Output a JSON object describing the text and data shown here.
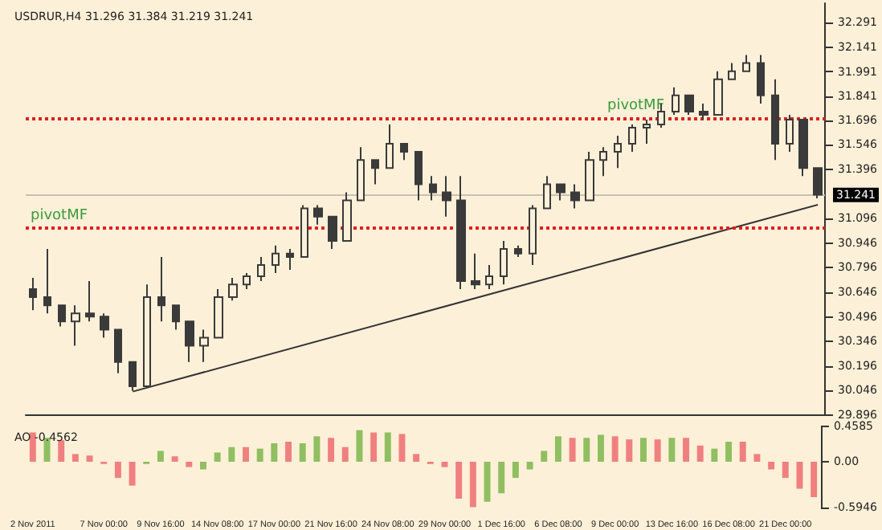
{
  "chart_data": [
    {
      "type": "candlestick",
      "title": "USDRUR,H4 31.296 31.384 31.219 31.241",
      "color": "#3a3a3a",
      "tick_labels": "y",
      "grid": false,
      "categories": [
        null,
        null,
        null,
        null,
        null,
        null,
        null,
        null,
        null,
        null,
        null,
        null,
        null,
        null,
        null,
        null,
        null,
        null,
        null,
        null,
        null,
        null,
        null,
        null,
        null,
        null,
        null,
        null,
        null,
        null,
        null,
        null,
        null,
        null,
        null,
        null,
        null,
        null,
        null,
        null,
        null,
        null,
        null,
        null,
        null,
        null,
        null,
        null,
        null,
        null,
        null,
        null,
        null,
        null,
        null,
        null
      ],
      "ohlc": [
        [
          30.665,
          30.734,
          30.537,
          30.616
        ],
        [
          30.616,
          30.911,
          30.517,
          30.566
        ],
        [
          30.566,
          30.566,
          30.438,
          30.468
        ],
        [
          30.468,
          30.566,
          30.32,
          30.517
        ],
        [
          30.517,
          30.714,
          30.468,
          30.497
        ],
        [
          30.497,
          30.517,
          30.369,
          30.418
        ],
        [
          30.418,
          30.418,
          30.152,
          30.221
        ],
        [
          30.221,
          30.221,
          30.044,
          30.073
        ],
        [
          30.073,
          30.694,
          30.073,
          30.616
        ],
        [
          30.616,
          30.862,
          30.468,
          30.566
        ],
        [
          30.566,
          30.566,
          30.418,
          30.468
        ],
        [
          30.468,
          30.468,
          30.221,
          30.32
        ],
        [
          30.32,
          30.418,
          30.221,
          30.369
        ],
        [
          30.369,
          30.665,
          30.369,
          30.616
        ],
        [
          30.616,
          30.734,
          30.596,
          30.694
        ],
        [
          30.694,
          30.763,
          30.665,
          30.744
        ],
        [
          30.744,
          30.862,
          30.714,
          30.813
        ],
        [
          30.813,
          30.931,
          30.763,
          30.882
        ],
        [
          30.882,
          30.911,
          30.783,
          30.862
        ],
        [
          30.862,
          31.177,
          30.862,
          31.158
        ],
        [
          31.158,
          31.177,
          31.059,
          31.108
        ],
        [
          31.108,
          31.108,
          30.911,
          30.96
        ],
        [
          30.96,
          31.256,
          30.96,
          31.207
        ],
        [
          31.207,
          31.532,
          31.207,
          31.453
        ],
        [
          31.453,
          31.453,
          31.305,
          31.404
        ],
        [
          31.404,
          31.67,
          31.404,
          31.552
        ],
        [
          31.552,
          31.552,
          31.453,
          31.503
        ],
        [
          31.503,
          31.503,
          31.207,
          31.305
        ],
        [
          31.305,
          31.355,
          31.207,
          31.256
        ],
        [
          31.256,
          31.355,
          31.108,
          31.207
        ],
        [
          31.207,
          31.355,
          30.665,
          30.714
        ],
        [
          30.714,
          30.882,
          30.665,
          30.694
        ],
        [
          30.694,
          30.813,
          30.665,
          30.744
        ],
        [
          30.744,
          30.96,
          30.694,
          30.911
        ],
        [
          30.911,
          30.931,
          30.862,
          30.882
        ],
        [
          30.882,
          31.177,
          30.813,
          31.158
        ],
        [
          31.158,
          31.355,
          31.158,
          31.305
        ],
        [
          31.305,
          31.305,
          31.207,
          31.256
        ],
        [
          31.256,
          31.305,
          31.158,
          31.207
        ],
        [
          31.207,
          31.503,
          31.207,
          31.453
        ],
        [
          31.453,
          31.532,
          31.355,
          31.503
        ],
        [
          31.503,
          31.601,
          31.404,
          31.552
        ],
        [
          31.552,
          31.67,
          31.503,
          31.65
        ],
        [
          31.65,
          31.7,
          31.552,
          31.67
        ],
        [
          31.67,
          31.798,
          31.65,
          31.749
        ],
        [
          31.749,
          31.897,
          31.729,
          31.848
        ],
        [
          31.848,
          31.848,
          31.729,
          31.749
        ],
        [
          31.749,
          31.798,
          31.7,
          31.729
        ],
        [
          31.729,
          31.995,
          31.729,
          31.946
        ],
        [
          31.946,
          32.045,
          31.946,
          31.995
        ],
        [
          31.995,
          32.094,
          31.995,
          32.045
        ],
        [
          32.045,
          32.094,
          31.798,
          31.848
        ],
        [
          31.848,
          31.946,
          31.453,
          31.552
        ],
        [
          31.552,
          31.729,
          31.503,
          31.7
        ],
        [
          31.7,
          31.7,
          31.355,
          31.404
        ],
        [
          31.404,
          31.404,
          31.219,
          31.241
        ]
      ],
      "series": [
        {
          "type": "line",
          "color": "#333333",
          "values": [
            null,
            null,
            null,
            null,
            null,
            null,
            null,
            30.04,
            null,
            null,
            null,
            null,
            null,
            null,
            null,
            null,
            null,
            null,
            null,
            null,
            null,
            null,
            null,
            null,
            null,
            null,
            null,
            null,
            null,
            null,
            null,
            null,
            null,
            null,
            null,
            null,
            null,
            null,
            null,
            null,
            null,
            null,
            null,
            null,
            null,
            null,
            null,
            null,
            null,
            null,
            null,
            null,
            null,
            null,
            null,
            31.18
          ]
        }
      ],
      "ylim": [
        29.896,
        32.41
      ],
      "yticks": [
        29.896,
        30.046,
        30.196,
        30.346,
        30.496,
        30.646,
        30.796,
        30.946,
        31.096,
        31.396,
        31.546,
        31.696,
        31.841,
        31.991,
        32.141,
        32.291
      ],
      "ref_lines": [
        {
          "axis": "y",
          "value": 31.241,
          "label": "31.241",
          "color": "#c8c0b0",
          "line_style": "solid"
        },
        {
          "axis": "y",
          "value": 31.71,
          "label": "pivotMF",
          "color": "#e02020",
          "line_style": "dotted"
        },
        {
          "axis": "y",
          "value": 31.039,
          "label": "pivotMF",
          "color": "#e02020",
          "line_style": "dotted"
        }
      ]
    },
    {
      "type": "bar",
      "title": "AO -0.4562",
      "grid": false,
      "categories": [
        "2 Nov 2011",
        null,
        null,
        null,
        null,
        "7 Nov 00:00",
        null,
        null,
        null,
        "9 Nov 16:00",
        null,
        null,
        null,
        "14 Nov 08:00",
        null,
        null,
        null,
        "17 Nov 00:00",
        null,
        null,
        null,
        "21 Nov 16:00",
        null,
        null,
        null,
        "24 Nov 08:00",
        null,
        null,
        null,
        "29 Nov 00:00",
        null,
        null,
        null,
        "1 Dec 16:00",
        null,
        null,
        null,
        "6 Dec 08:00",
        null,
        null,
        null,
        "9 Dec 00:00",
        null,
        null,
        null,
        "13 Dec 16:00",
        null,
        null,
        null,
        "16 Dec 08:00",
        null,
        null,
        null,
        "21 Dec 00:00",
        null,
        null
      ],
      "values": [
        0.38,
        0.31,
        0.28,
        0.1,
        0.08,
        -0.03,
        -0.21,
        -0.31,
        -0.03,
        0.14,
        0.07,
        -0.07,
        -0.1,
        0.12,
        0.19,
        0.19,
        0.17,
        0.24,
        0.26,
        0.24,
        0.33,
        0.31,
        0.19,
        0.41,
        0.38,
        0.38,
        0.36,
        0.1,
        -0.03,
        -0.07,
        -0.48,
        -0.59,
        -0.52,
        -0.41,
        -0.21,
        -0.1,
        0.14,
        0.33,
        0.31,
        0.31,
        0.35,
        0.33,
        0.29,
        0.31,
        0.29,
        0.31,
        0.31,
        0.21,
        0.17,
        0.26,
        0.26,
        0.1,
        -0.1,
        -0.21,
        -0.35,
        -0.46
      ],
      "colors": [
        "#f08080",
        "#8fbf60",
        "#f08080",
        "#f08080",
        "#f08080",
        "#f08080",
        "#f08080",
        "#f08080",
        "#8fbf60",
        "#8fbf60",
        "#f08080",
        "#f08080",
        "#8fbf60",
        "#8fbf60",
        "#8fbf60",
        "#f08080",
        "#8fbf60",
        "#8fbf60",
        "#f08080",
        "#8fbf60",
        "#8fbf60",
        "#f08080",
        "#f08080",
        "#8fbf60",
        "#f08080",
        "#8fbf60",
        "#f08080",
        "#f08080",
        "#f08080",
        "#f08080",
        "#f08080",
        "#f08080",
        "#8fbf60",
        "#8fbf60",
        "#8fbf60",
        "#8fbf60",
        "#8fbf60",
        "#8fbf60",
        "#f08080",
        "#8fbf60",
        "#8fbf60",
        "#f08080",
        "#f08080",
        "#8fbf60",
        "#f08080",
        "#8fbf60",
        "#f08080",
        "#f08080",
        "#8fbf60",
        "#8fbf60",
        "#f08080",
        "#f08080",
        "#f08080",
        "#f08080",
        "#f08080",
        "#f08080"
      ],
      "ylim": [
        -0.5946,
        0.4585
      ],
      "yticks": [
        -0.5946,
        {
          "value": 0,
          "label": "0.00"
        },
        0.4585
      ]
    }
  ]
}
